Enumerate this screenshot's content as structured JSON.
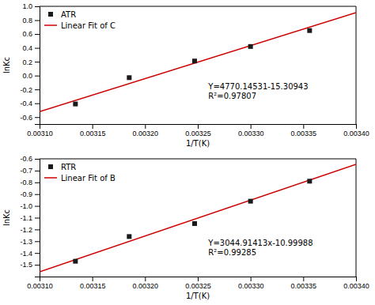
{
  "chart_data": [
    {
      "type": "scatter",
      "xlabel": "1/T(K)",
      "ylabel": "lnKc",
      "xlim": [
        0.0031,
        0.0034
      ],
      "xticks": [
        {
          "value": 0.0031,
          "label": "0.00310"
        },
        0.00315,
        {
          "value": 0.0032,
          "label": "0.00320"
        },
        0.00325,
        {
          "value": 0.0033,
          "label": "0.00330"
        },
        0.00335,
        {
          "value": 0.0034,
          "label": "0.00340"
        }
      ],
      "ylim": [
        -0.7,
        1.0
      ],
      "yticks": [
        -0.6,
        -0.4,
        -0.2,
        {
          "value": 0,
          "label": "0.0"
        },
        0.2,
        0.4,
        0.6,
        0.8,
        {
          "value": 1.0,
          "label": "1.0"
        }
      ],
      "grid": false,
      "legend": "upper left",
      "series": [
        {
          "name": "ATR",
          "type": "scatter",
          "marker": "square",
          "color": "#1a1a1a",
          "x": [
            0.003134,
            0.003185,
            0.003247,
            0.0033,
            0.003356
          ],
          "values": [
            -0.41,
            -0.03,
            0.21,
            0.42,
            0.65
          ]
        },
        {
          "name": "Linear Fit of C",
          "type": "line",
          "line_style": "solid",
          "color": "#cc0000",
          "x": [
            0.0031,
            0.0034
          ],
          "values": [
            -0.521979539,
            0.909064054
          ]
        }
      ],
      "annotations": [
        {
          "x": 0.00326,
          "y": -0.1,
          "text": [
            "Y=4770.14531-15.30943",
            "R²=0.97807"
          ]
        }
      ]
    },
    {
      "type": "scatter",
      "xlabel": "1/T(K)",
      "ylabel": "lnKc",
      "xlim": [
        0.0031,
        0.0034
      ],
      "xticks": [
        {
          "value": 0.0031,
          "label": "0.00310"
        },
        0.00315,
        {
          "value": 0.0032,
          "label": "0.00320"
        },
        0.00325,
        {
          "value": 0.0033,
          "label": "0.00330"
        },
        0.00335,
        {
          "value": 0.0034,
          "label": "0.00340"
        }
      ],
      "ylim": [
        -1.6,
        -0.6
      ],
      "yticks": [
        -1.5,
        -1.4,
        -1.3,
        -1.2,
        -1.1,
        {
          "value": -1.0,
          "label": "-1.0"
        },
        -0.9,
        -0.8,
        -0.7,
        -0.6
      ],
      "grid": false,
      "legend": "upper left",
      "series": [
        {
          "name": "RTR",
          "type": "scatter",
          "marker": "square",
          "color": "#1a1a1a",
          "x": [
            0.003134,
            0.003185,
            0.003247,
            0.0033,
            0.003356
          ],
          "values": [
            -1.47,
            -1.26,
            -1.15,
            -0.96,
            -0.79
          ]
        },
        {
          "name": "Linear Fit of B",
          "type": "line",
          "line_style": "solid",
          "color": "#cc0000",
          "x": [
            0.0031,
            0.0034
          ],
          "values": [
            -1.560646197,
            -0.647171958
          ]
        }
      ],
      "annotations": [
        {
          "x": 0.00326,
          "y": -1.28,
          "text": [
            "Y=3044.91413x-10.99988",
            "R²=0.99285"
          ]
        }
      ]
    }
  ]
}
